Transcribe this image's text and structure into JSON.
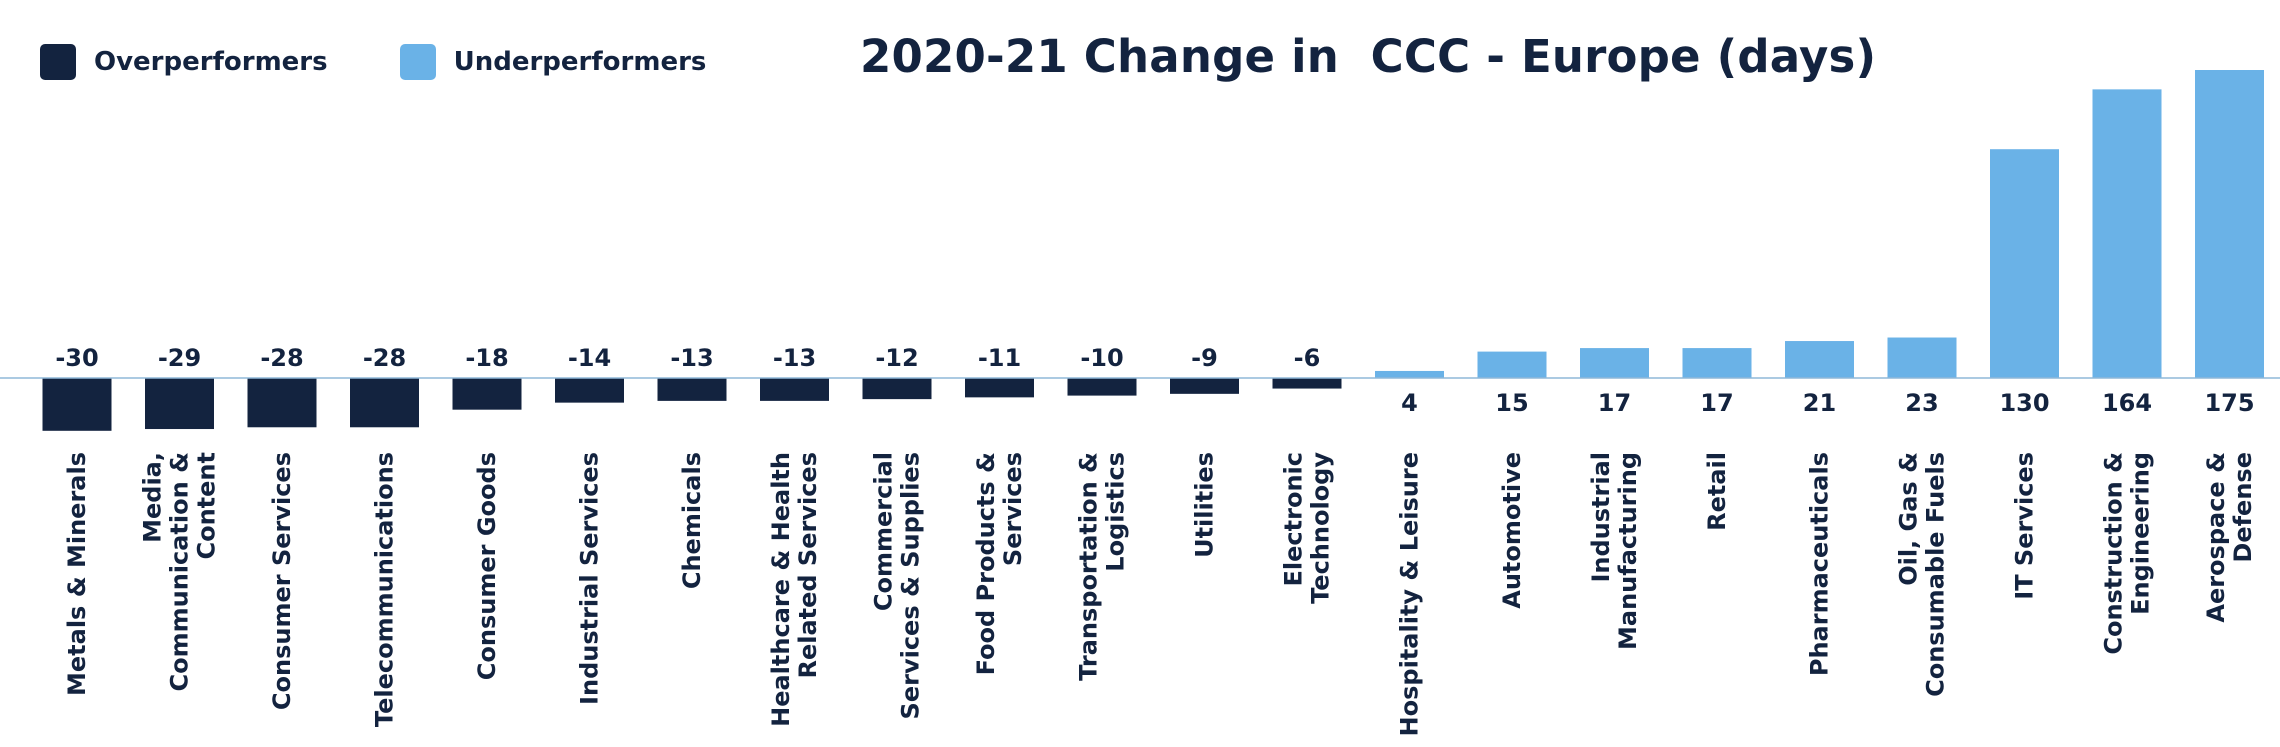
{
  "title": "2020-21 Change in  CCC - Europe (days)",
  "colors": {
    "over": "#13233f",
    "under": "#6ab2e7",
    "axis": "#8fb8d8",
    "text": "#13233f"
  },
  "legend": [
    {
      "label": "Overperformers",
      "color": "#13233f"
    },
    {
      "label": "Underperformers",
      "color": "#6ab2e7"
    }
  ],
  "chart_data": {
    "type": "bar",
    "title": "2020-21 Change in  CCC - Europe (days)",
    "xlabel": "",
    "ylabel": "",
    "ylim": [
      -30,
      175
    ],
    "grid": false,
    "legend_position": "top-left",
    "categories": [
      [
        "Metals & Minerals"
      ],
      [
        "Media,",
        "Communication &",
        "Content"
      ],
      [
        "Consumer Services"
      ],
      [
        "Telecommunications"
      ],
      [
        "Consumer Goods"
      ],
      [
        "Industrial Services"
      ],
      [
        "Chemicals"
      ],
      [
        "Healthcare & Health",
        "Related Services"
      ],
      [
        "Commercial",
        "Services & Supplies"
      ],
      [
        "Food Products &",
        "Services"
      ],
      [
        "Transportation &",
        "Logistics"
      ],
      [
        "Utilities"
      ],
      [
        "Electronic",
        "Technology"
      ],
      [
        "Hospitality & Leisure"
      ],
      [
        "Automotive"
      ],
      [
        "Industrial",
        "Manufacturing"
      ],
      [
        "Retail"
      ],
      [
        "Pharmaceuticals"
      ],
      [
        "Oil, Gas &",
        "Consumable Fuels"
      ],
      [
        "IT Services"
      ],
      [
        "Construction &",
        "Engineering"
      ],
      [
        "Aerospace &",
        "Defense"
      ]
    ],
    "values": [
      -30,
      -29,
      -28,
      -28,
      -18,
      -14,
      -13,
      -13,
      -12,
      -11,
      -10,
      -9,
      -6,
      4,
      15,
      17,
      17,
      21,
      23,
      130,
      164,
      175
    ],
    "labels": [
      "-30",
      "-29",
      "-28",
      "-28",
      "-18",
      "-14",
      "-13",
      "-13",
      "-12",
      "-11",
      "-10",
      "-9",
      "-6",
      "4",
      "15",
      "17",
      "17",
      "21",
      "23",
      "130",
      "164",
      "175"
    ],
    "groups": [
      "Overperformers",
      "Overperformers",
      "Overperformers",
      "Overperformers",
      "Overperformers",
      "Overperformers",
      "Overperformers",
      "Overperformers",
      "Overperformers",
      "Overperformers",
      "Overperformers",
      "Overperformers",
      "Overperformers",
      "Underperformers",
      "Underperformers",
      "Underperformers",
      "Underperformers",
      "Underperformers",
      "Underperformers",
      "Underperformers",
      "Underperformers",
      "Underperformers"
    ]
  }
}
